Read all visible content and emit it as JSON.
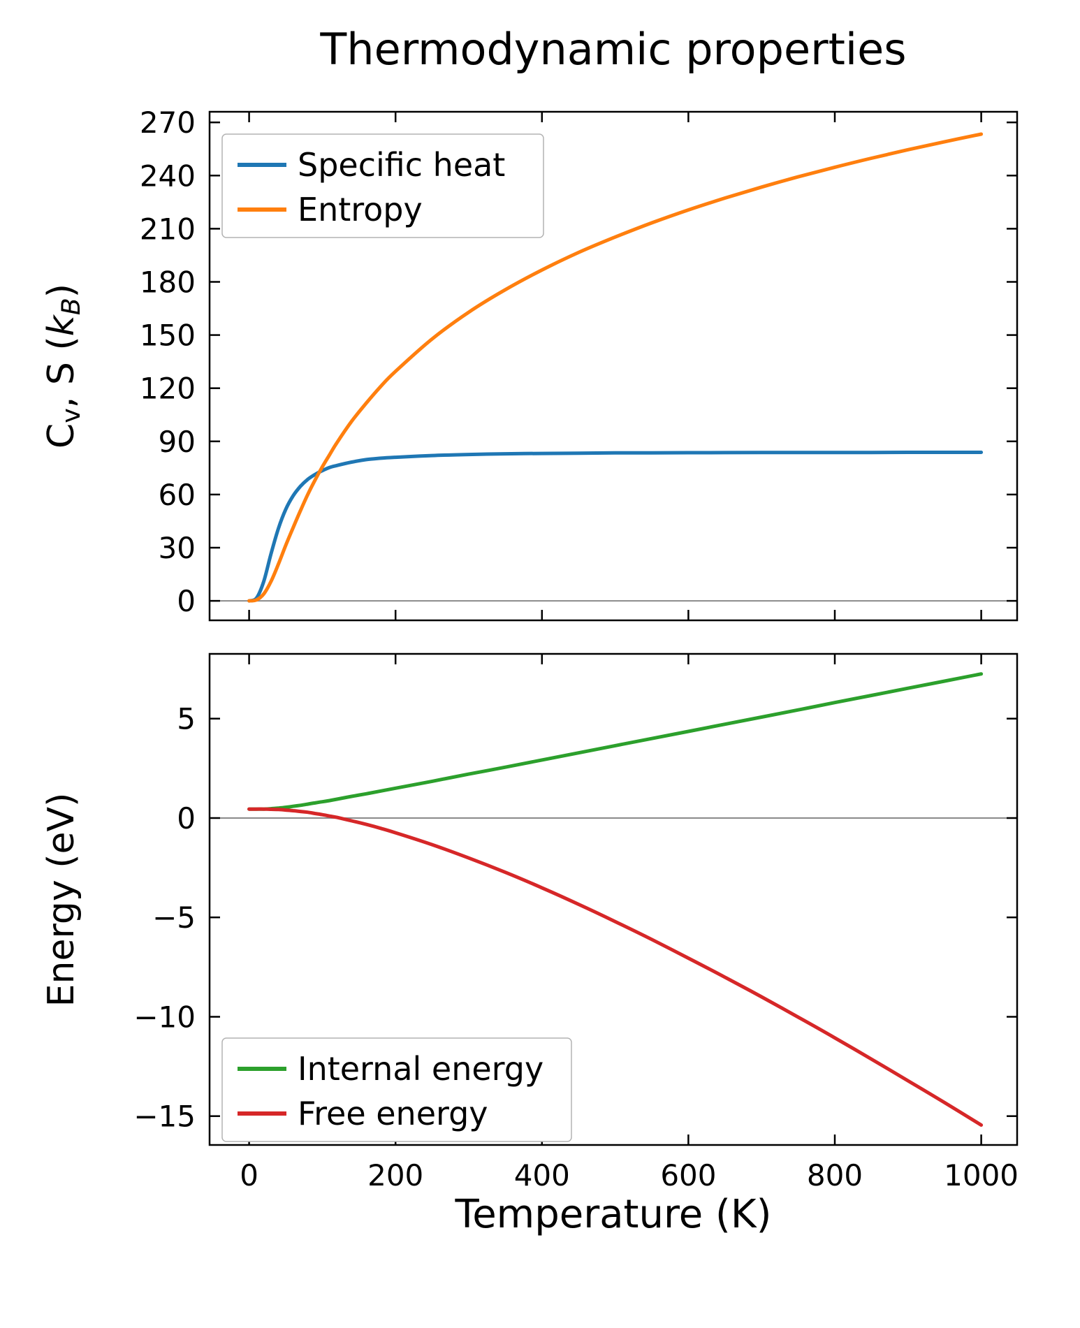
{
  "figure": {
    "title": "Thermodynamic properties",
    "xlabel": "Temperature (K)",
    "background_color": "#ffffff",
    "axes_color": "#000000"
  },
  "chart_data": {
    "type": "line",
    "title": "Thermodynamic properties",
    "x_label": "Temperature (K)",
    "x_lim": [
      -54,
      1049
    ],
    "x_ticks": [
      0,
      200,
      400,
      600,
      800,
      1000
    ],
    "zero_line_color": "#8a8a8a",
    "grid": false,
    "temperatures_K": [
      0,
      10,
      20,
      30,
      40,
      50,
      60,
      70,
      80,
      90,
      100,
      110,
      120,
      140,
      160,
      180,
      200,
      250,
      300,
      350,
      400,
      450,
      500,
      550,
      600,
      650,
      700,
      750,
      800,
      850,
      900,
      950,
      1000
    ],
    "panels": [
      {
        "id": "thermo",
        "y_label": "Cv, S (kB)",
        "y_label_parts": [
          {
            "t": "C"
          },
          {
            "t": "v",
            "s": "sub"
          },
          {
            "t": ", S ("
          },
          {
            "t": "k",
            "s": "it"
          },
          {
            "t": "B",
            "s": "itsub"
          },
          {
            "t": ")"
          }
        ],
        "y_lim": [
          -11,
          276
        ],
        "y_ticks": [
          0,
          30,
          60,
          90,
          120,
          150,
          180,
          210,
          240,
          270
        ],
        "zero_line": true,
        "legend": {
          "position": "upper-left",
          "entries": [
            "Specific heat",
            "Entropy"
          ]
        },
        "series": [
          {
            "name": "Specific heat",
            "color": "#1f77b4",
            "values": [
              0,
              1.5,
              11,
              26.6,
              40.8,
              51.6,
              59.2,
              64.6,
              68.5,
              71.3,
              73.5,
              75.3,
              76.4,
              78.3,
              79.7,
              80.5,
              81.0,
              82.0,
              82.6,
              83.0,
              83.2,
              83.35,
              83.5,
              83.55,
              83.6,
              83.65,
              83.7,
              83.7,
              83.75,
              83.75,
              83.8,
              83.8,
              83.8
            ]
          },
          {
            "name": "Entropy",
            "color": "#ff7f0e",
            "values": [
              0,
              0.5,
              3.9,
              11.0,
              20.7,
              31.3,
              41.2,
              50.8,
              59.9,
              68.1,
              75.6,
              82.5,
              89.3,
              101.3,
              111.6,
              121.1,
              129.5,
              147.8,
              162.9,
              175.6,
              186.7,
              196.6,
              205.3,
              213.3,
              220.6,
              227.3,
              233.5,
              239.3,
              244.7,
              249.8,
              254.6,
              259.1,
              263.4
            ]
          }
        ]
      },
      {
        "id": "energy",
        "y_label": "Energy (eV)",
        "y_lim": [
          -16.45,
          8.26
        ],
        "y_ticks": [
          5,
          0,
          -5,
          -10,
          -15
        ],
        "zero_line": true,
        "legend": {
          "position": "lower-left",
          "entries": [
            "Internal energy",
            "Free energy"
          ]
        },
        "series": [
          {
            "name": "Internal energy",
            "color": "#2ca02c",
            "values": [
              0.45,
              0.45,
              0.45,
              0.47,
              0.5,
              0.54,
              0.59,
              0.64,
              0.7,
              0.76,
              0.82,
              0.88,
              0.95,
              1.09,
              1.22,
              1.36,
              1.5,
              1.85,
              2.21,
              2.56,
              2.92,
              3.28,
              3.64,
              4.0,
              4.36,
              4.72,
              5.08,
              5.44,
              5.81,
              6.17,
              6.53,
              6.89,
              7.25
            ]
          },
          {
            "name": "Free energy",
            "color": "#d62728",
            "values": [
              0.45,
              0.45,
              0.45,
              0.44,
              0.43,
              0.4,
              0.37,
              0.33,
              0.29,
              0.23,
              0.17,
              0.1,
              0.03,
              -0.14,
              -0.32,
              -0.52,
              -0.74,
              -1.34,
              -2.01,
              -2.73,
              -3.51,
              -4.34,
              -5.21,
              -6.11,
              -7.05,
              -8.01,
              -9.0,
              -10.02,
              -11.06,
              -12.13,
              -13.22,
              -14.32,
              -15.45
            ]
          }
        ]
      }
    ]
  }
}
